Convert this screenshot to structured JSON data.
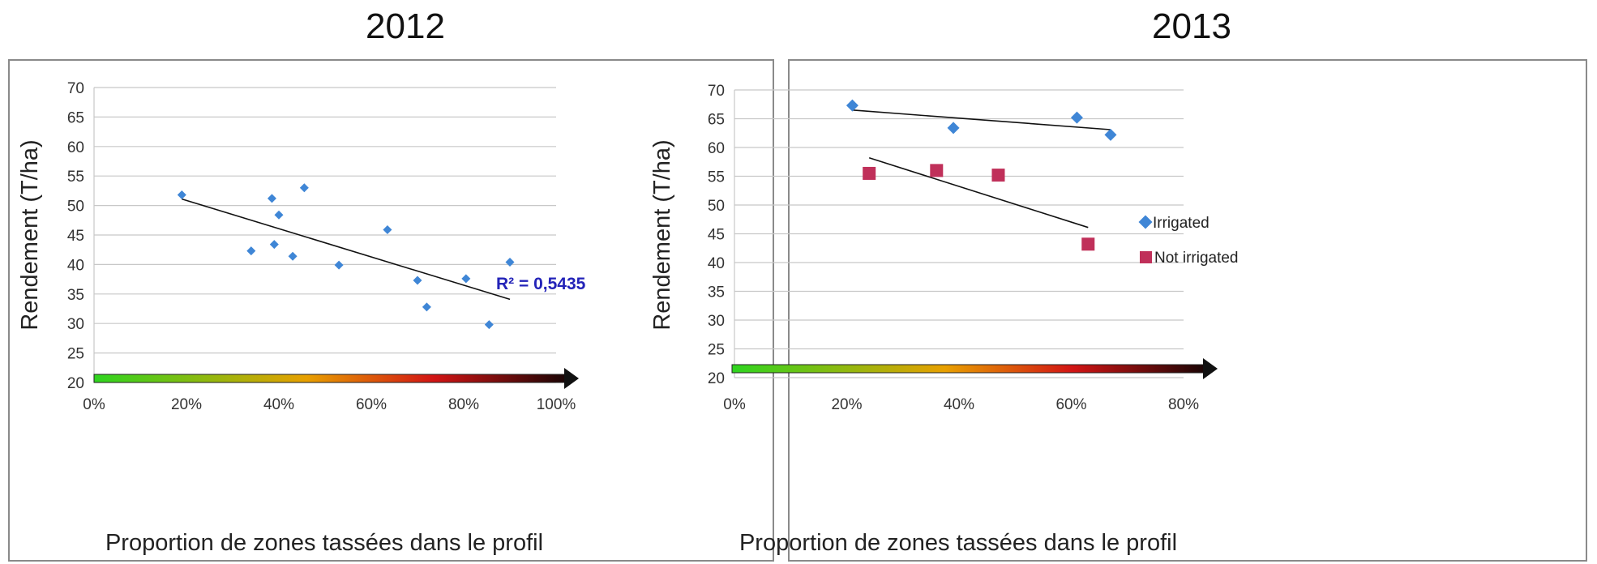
{
  "chart_data": [
    {
      "type": "scatter",
      "title": "2012",
      "xlabel": "Proportion de zones tassées dans le profil",
      "ylabel": "Rendement (T/ha)",
      "xlim": [
        0,
        1
      ],
      "ylim": [
        20,
        70
      ],
      "x_ticks": [
        "0%",
        "20%",
        "40%",
        "60%",
        "80%",
        "100%"
      ],
      "y_ticks": [
        "20",
        "25",
        "30",
        "35",
        "40",
        "45",
        "50",
        "55",
        "60",
        "65",
        "70"
      ],
      "grid": "horizontal",
      "series": [
        {
          "color": "#3f86d6",
          "marker": "diamond",
          "x": [
            0.19,
            0.34,
            0.385,
            0.39,
            0.4,
            0.43,
            0.455,
            0.53,
            0.635,
            0.7,
            0.72,
            0.805,
            0.855,
            0.9
          ],
          "y": [
            51.8,
            42.3,
            51.2,
            43.4,
            48.4,
            41.4,
            53.0,
            39.9,
            45.9,
            37.3,
            32.8,
            37.6,
            29.8,
            40.4
          ]
        }
      ],
      "trendlines": [
        {
          "x": [
            0.19,
            0.9
          ],
          "y": [
            51.1,
            34.1
          ]
        }
      ],
      "annotations": [
        "R² = 0,5435"
      ],
      "colors": {
        "gradient_start": "#2ed51f",
        "gradient_mid": "#e8a000",
        "gradient_red": "#d21414",
        "gradient_end": "#1a0505"
      }
    },
    {
      "type": "scatter",
      "title": "2013",
      "xlabel": "Proportion de zones tassées dans le profil",
      "ylabel": "Rendement (T/ha)",
      "xlim": [
        0,
        0.8
      ],
      "ylim": [
        20,
        70
      ],
      "x_ticks": [
        "0%",
        "20%",
        "40%",
        "60%",
        "80%"
      ],
      "y_ticks": [
        "20",
        "25",
        "30",
        "35",
        "40",
        "45",
        "50",
        "55",
        "60",
        "65",
        "70"
      ],
      "grid": "horizontal",
      "legend_position": "right",
      "series": [
        {
          "name": "Irrigated",
          "color": "#3f86d6",
          "marker": "diamond",
          "x": [
            0.21,
            0.39,
            0.61,
            0.67
          ],
          "y": [
            67.3,
            63.4,
            65.2,
            62.2
          ]
        },
        {
          "name": "Not irrigated",
          "color": "#c0305a",
          "marker": "square",
          "x": [
            0.24,
            0.36,
            0.47,
            0.63
          ],
          "y": [
            55.5,
            56.0,
            55.2,
            43.2
          ]
        }
      ],
      "trendlines": [
        {
          "x": [
            0.21,
            0.67
          ],
          "y": [
            66.5,
            63.1
          ]
        },
        {
          "x": [
            0.24,
            0.63
          ],
          "y": [
            58.2,
            46.1
          ]
        }
      ]
    }
  ]
}
